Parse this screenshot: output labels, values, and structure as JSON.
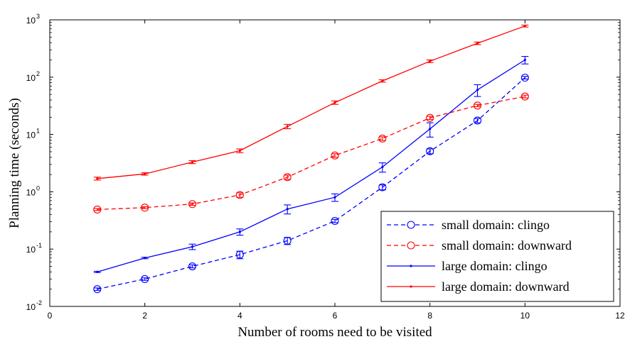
{
  "chart_data": {
    "type": "line",
    "title": "",
    "xlabel": "Number of rooms need to be visited",
    "ylabel": "Planning time (seconds)",
    "xlim": [
      0,
      12
    ],
    "ylim": [
      0.01,
      1000
    ],
    "yscale": "log",
    "grid": false,
    "legend_position": "bottom-right",
    "x_ticks": [
      0,
      2,
      4,
      6,
      8,
      10,
      12
    ],
    "y_ticks": [
      {
        "value": 0.01,
        "base": "10",
        "exp": "-2"
      },
      {
        "value": 0.1,
        "base": "10",
        "exp": "-1"
      },
      {
        "value": 1,
        "base": "10",
        "exp": "0"
      },
      {
        "value": 10,
        "base": "10",
        "exp": "1"
      },
      {
        "value": 100,
        "base": "10",
        "exp": "2"
      },
      {
        "value": 1000,
        "base": "10",
        "exp": "3"
      }
    ],
    "x": [
      1,
      2,
      3,
      4,
      5,
      6,
      7,
      8,
      9,
      10
    ],
    "series": [
      {
        "name": "small domain: clingo",
        "color": "#0000ff",
        "line_style": "dashed",
        "marker": "circle",
        "values": [
          0.02,
          0.03,
          0.05,
          0.08,
          0.14,
          0.31,
          1.2,
          5.1,
          17.5,
          98
        ],
        "error": [
          0.001,
          0.0015,
          0.003,
          0.012,
          0.02,
          0.02,
          0.12,
          0.5,
          1.5,
          5
        ]
      },
      {
        "name": "small domain: downward",
        "color": "#ff0000",
        "line_style": "dashed",
        "marker": "circle",
        "values": [
          0.49,
          0.53,
          0.61,
          0.88,
          1.8,
          4.3,
          8.5,
          19.5,
          32,
          46
        ],
        "error": [
          0.02,
          0.02,
          0.03,
          0.08,
          0.15,
          0.3,
          0.6,
          1.2,
          1.5,
          2.5
        ]
      },
      {
        "name": "large domain: clingo",
        "color": "#0000ff",
        "line_style": "solid",
        "marker": "point",
        "values": [
          0.04,
          0.07,
          0.11,
          0.2,
          0.5,
          0.8,
          2.7,
          12.5,
          60,
          200
        ],
        "error": [
          0.001,
          0.002,
          0.012,
          0.025,
          0.09,
          0.12,
          0.5,
          3.5,
          14,
          30
        ]
      },
      {
        "name": "large domain: downward",
        "color": "#ff0000",
        "line_style": "solid",
        "marker": "point",
        "values": [
          1.7,
          2.05,
          3.3,
          5.2,
          13.8,
          36,
          86,
          190,
          390,
          780
        ],
        "error": [
          0.1,
          0.1,
          0.2,
          0.4,
          1.2,
          2.5,
          4,
          10,
          20,
          30
        ]
      }
    ]
  }
}
